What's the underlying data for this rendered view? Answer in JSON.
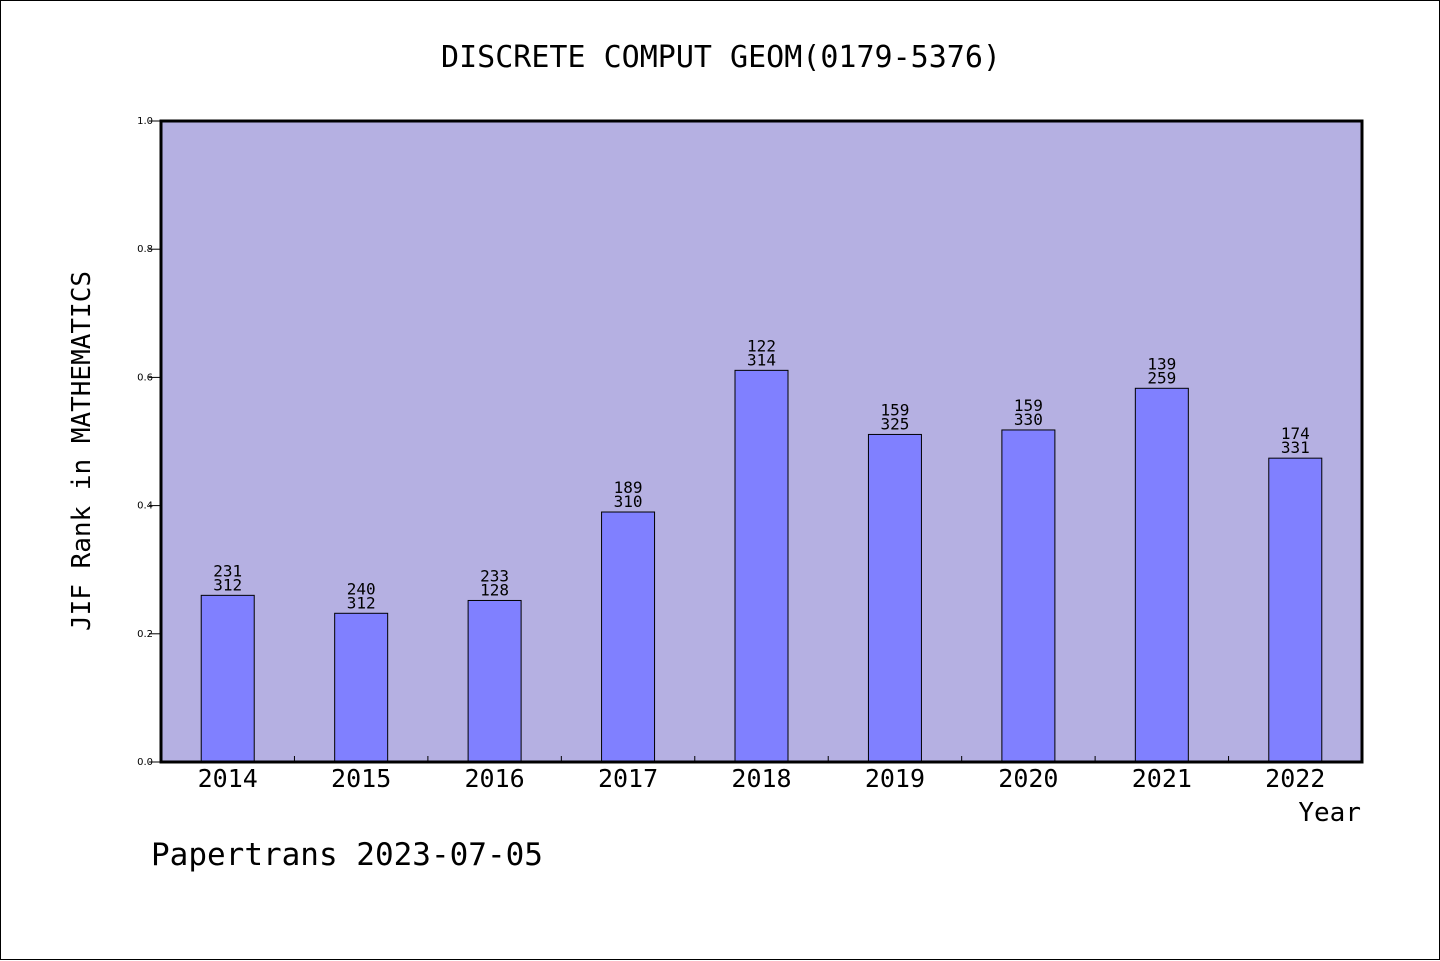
{
  "colors": {
    "plot_background": "#b5b0e2",
    "bar_fill": "#8080ff",
    "bar_stroke": "#000000",
    "axis": "#000000",
    "page_background": "#ffffff"
  },
  "credit": "Papertrans 2023-07-05",
  "chart_data": {
    "type": "bar",
    "title": "DISCRETE COMPUT GEOM(0179-5376)",
    "xlabel": "Year",
    "ylabel": "JIF Rank in MATHEMATICS",
    "ylim": [
      0,
      1.0
    ],
    "yticks": [
      "0.0",
      "0.2",
      "0.4",
      "0.6",
      "0.8",
      "1.0"
    ],
    "grid": false,
    "categories": [
      "2014",
      "2015",
      "2016",
      "2017",
      "2018",
      "2019",
      "2020",
      "2021",
      "2022"
    ],
    "values": [
      0.26,
      0.232,
      0.252,
      0.39,
      0.611,
      0.511,
      0.518,
      0.583,
      0.474
    ],
    "labels_top": [
      "231",
      "240",
      "233",
      "189",
      "122",
      "159",
      "159",
      "139",
      "174"
    ],
    "labels_bottom": [
      "312",
      "312",
      "128",
      "310",
      "314",
      "325",
      "330",
      "259",
      "331"
    ]
  }
}
